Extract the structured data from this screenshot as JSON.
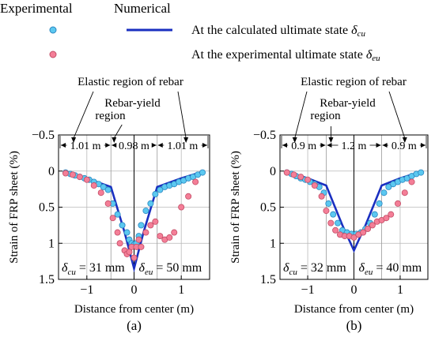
{
  "legend": {
    "experimental_label": "Experimental",
    "numerical_label": "Numerical",
    "cu_text": "At the calculated ultimate state ",
    "cu_symbol": "δ",
    "cu_sub": "cu",
    "eu_text": "At the experimental ultimate state ",
    "eu_symbol": "δ",
    "eu_sub": "eu"
  },
  "colors": {
    "cu_marker": "#5bc8f0",
    "cu_edge": "#2a86c0",
    "eu_marker": "#f47e97",
    "eu_edge": "#c24d66",
    "numerical_line": "#1a2fc0"
  },
  "chart_data": [
    {
      "type": "scatter",
      "panel_label": "(a)",
      "xlabel": "Distance from center (m)",
      "ylabel": "Strain of FRP sheet (%)",
      "xlim": [
        -1.6,
        1.6
      ],
      "ylim": [
        -0.5,
        1.5
      ],
      "y_inverted": true,
      "xticks": [
        -1,
        0,
        1
      ],
      "yticks": [
        -0.5,
        0,
        0.5,
        1,
        1.5
      ],
      "xtick_labels": [
        "−1",
        "0",
        "1"
      ],
      "ytick_labels": [
        "−0.5",
        "0",
        "0.5",
        "1",
        "1.5"
      ],
      "vlines": [
        -0.49,
        0.49
      ],
      "annotations": {
        "elastic": "Elastic region of rebar",
        "yield": "Rebar-yield\nregion",
        "dims": [
          "1.01 m",
          "0.98 m",
          "1.01 m"
        ]
      },
      "bottom_labels": {
        "cu_symbol": "δ",
        "cu_sub": "cu",
        "cu_value": " = 31 mm",
        "eu_symbol": "δ",
        "eu_sub": "eu",
        "eu_value": " = 50 mm"
      },
      "series": [
        {
          "name": "At the calculated ultimate state δcu",
          "kind": "Experimental",
          "x": [
            -1.45,
            -1.35,
            -1.25,
            -1.15,
            -1.05,
            -0.95,
            -0.85,
            -0.75,
            -0.65,
            -0.55,
            -0.45,
            -0.35,
            -0.25,
            -0.15,
            -0.1,
            -0.05,
            0,
            0.05,
            0.1,
            0.15,
            0.25,
            0.35,
            0.45,
            0.55,
            0.65,
            0.75,
            0.85,
            0.95,
            1.05,
            1.15,
            1.25,
            1.35,
            1.45
          ],
          "y": [
            0.02,
            0.04,
            0.06,
            0.08,
            0.1,
            0.12,
            0.15,
            0.18,
            0.22,
            0.26,
            0.45,
            0.6,
            0.75,
            0.85,
            0.95,
            1.0,
            1.02,
            1.0,
            0.9,
            0.75,
            0.55,
            0.45,
            0.32,
            0.26,
            0.22,
            0.2,
            0.18,
            0.15,
            0.13,
            0.1,
            0.08,
            0.05,
            0.02
          ]
        },
        {
          "name": "At the experimental ultimate state δeu",
          "kind": "Experimental",
          "x": [
            -1.45,
            -1.3,
            -1.15,
            -1.0,
            -0.85,
            -0.7,
            -0.55,
            -0.45,
            -0.35,
            -0.3,
            -0.2,
            -0.15,
            -0.1,
            -0.05,
            0,
            0.05,
            0.1,
            0.15,
            0.25,
            0.35,
            0.45,
            0.55,
            0.65,
            0.75,
            0.85,
            1.0,
            1.15,
            1.3
          ],
          "y": [
            0.03,
            0.05,
            0.08,
            0.12,
            0.2,
            0.3,
            0.45,
            0.65,
            0.85,
            1.0,
            1.1,
            1.15,
            1.12,
            1.05,
            1.2,
            1.05,
            0.95,
            1.05,
            0.85,
            0.75,
            0.7,
            0.9,
            0.95,
            0.92,
            0.85,
            0.5,
            0.35,
            0.15
          ]
        },
        {
          "name": "Numerical",
          "kind": "Numerical",
          "x": [
            -1.5,
            -1.0,
            -0.49,
            -0.2,
            0,
            0.2,
            0.49,
            1.0,
            1.5
          ],
          "y": [
            0,
            0.1,
            0.22,
            0.85,
            1.35,
            0.85,
            0.22,
            0.1,
            0
          ]
        }
      ]
    },
    {
      "type": "scatter",
      "panel_label": "(b)",
      "xlabel": "Distance from center (m)",
      "ylabel": "Strain of FRP sheet (%)",
      "xlim": [
        -1.6,
        1.6
      ],
      "ylim": [
        -0.5,
        1.5
      ],
      "y_inverted": true,
      "xticks": [
        -1,
        0,
        1
      ],
      "yticks": [
        -0.5,
        0,
        0.5,
        1,
        1.5
      ],
      "xtick_labels": [
        "−1",
        "0",
        "1"
      ],
      "ytick_labels": [
        "−0.5",
        "0",
        "0.5",
        "1",
        "1.5"
      ],
      "vlines": [
        -0.6,
        0.6
      ],
      "annotations": {
        "elastic": "Elastic region of rebar",
        "yield": "Rebar-yield\nregion",
        "dims": [
          "0.9 m",
          "1.2 m",
          "0.9 m"
        ]
      },
      "bottom_labels": {
        "cu_symbol": "δ",
        "cu_sub": "cu",
        "cu_value": " = 32 mm",
        "eu_symbol": "δ",
        "eu_sub": "eu",
        "eu_value": " = 40 mm"
      },
      "series": [
        {
          "name": "At the calculated ultimate state δcu",
          "kind": "Experimental",
          "x": [
            -1.45,
            -1.35,
            -1.25,
            -1.15,
            -1.05,
            -0.95,
            -0.85,
            -0.75,
            -0.65,
            -0.55,
            -0.45,
            -0.35,
            -0.25,
            -0.15,
            -0.05,
            0.05,
            0.15,
            0.25,
            0.35,
            0.45,
            0.55,
            0.65,
            0.75,
            0.85,
            0.95,
            1.05,
            1.15,
            1.25,
            1.35,
            1.45
          ],
          "y": [
            0.02,
            0.04,
            0.07,
            0.1,
            0.12,
            0.15,
            0.18,
            0.22,
            0.3,
            0.45,
            0.6,
            0.72,
            0.82,
            0.85,
            0.87,
            0.87,
            0.85,
            0.8,
            0.72,
            0.6,
            0.45,
            0.3,
            0.22,
            0.18,
            0.15,
            0.12,
            0.1,
            0.07,
            0.04,
            0.02
          ]
        },
        {
          "name": "At the experimental ultimate state δeu",
          "kind": "Experimental",
          "x": [
            -1.45,
            -1.3,
            -1.15,
            -1.0,
            -0.85,
            -0.7,
            -0.6,
            -0.5,
            -0.4,
            -0.3,
            -0.2,
            -0.1,
            0,
            0.1,
            0.2,
            0.3,
            0.4,
            0.5,
            0.6,
            0.7,
            0.8,
            0.95,
            1.1,
            1.25
          ],
          "y": [
            0.02,
            0.05,
            0.08,
            0.12,
            0.2,
            0.35,
            0.55,
            0.72,
            0.82,
            0.88,
            0.9,
            0.9,
            0.92,
            0.88,
            0.85,
            0.8,
            0.75,
            0.7,
            0.68,
            0.65,
            0.6,
            0.45,
            0.3,
            0.15
          ]
        },
        {
          "name": "Numerical",
          "kind": "Numerical",
          "x": [
            -1.5,
            -1.0,
            -0.6,
            -0.25,
            0,
            0.25,
            0.6,
            1.0,
            1.5
          ],
          "y": [
            0,
            0.1,
            0.2,
            0.75,
            1.1,
            0.75,
            0.2,
            0.1,
            0
          ]
        }
      ]
    }
  ]
}
